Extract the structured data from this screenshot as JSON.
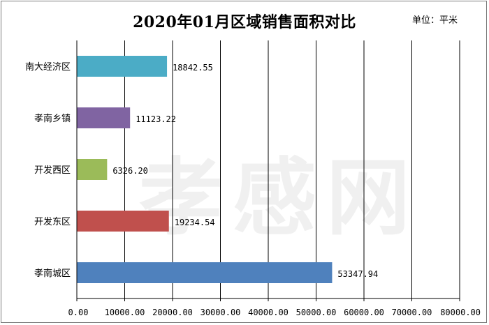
{
  "unit_label": "单位：平米",
  "watermark": "孝感网",
  "chart_data": {
    "type": "bar",
    "orientation": "horizontal",
    "title": "2020年01月区域销售面积对比",
    "xlabel": "",
    "ylabel": "",
    "xlim": [
      0,
      80000
    ],
    "grid": true,
    "categories": [
      "南大经济区",
      "孝南乡镇",
      "开发西区",
      "开发东区",
      "孝南城区"
    ],
    "values": [
      18842.55,
      11123.22,
      6326.2,
      19234.54,
      53347.94
    ],
    "value_labels": [
      "18842.55",
      "11123.22",
      "6326.20",
      "19234.54",
      "53347.94"
    ],
    "colors": [
      "#4bacc6",
      "#8064a2",
      "#9bbb59",
      "#c0504d",
      "#4f81bd"
    ],
    "ticks": [
      0,
      10000,
      20000,
      30000,
      40000,
      50000,
      60000,
      70000,
      80000
    ],
    "tick_labels": [
      "0.00",
      "10000.00",
      "20000.00",
      "30000.00",
      "40000.00",
      "50000.00",
      "60000.00",
      "70000.00",
      "80000.00"
    ]
  }
}
